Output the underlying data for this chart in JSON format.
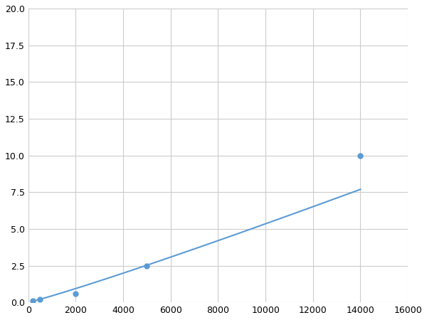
{
  "x": [
    200,
    500,
    2000,
    5000,
    14000
  ],
  "y": [
    0.1,
    0.2,
    0.6,
    2.5,
    10.0
  ],
  "line_color": "#5b9bd5",
  "marker_color": "#5b9bd5",
  "marker_size": 5,
  "line_width": 1.5,
  "xlim": [
    0,
    16000
  ],
  "ylim": [
    0,
    20.0
  ],
  "xticks": [
    0,
    2000,
    4000,
    6000,
    8000,
    10000,
    12000,
    14000,
    16000
  ],
  "yticks": [
    0.0,
    2.5,
    5.0,
    7.5,
    10.0,
    12.5,
    15.0,
    17.5,
    20.0
  ],
  "grid": true,
  "grid_color": "#cccccc",
  "background_color": "#ffffff",
  "figsize": [
    6.0,
    4.5
  ],
  "dpi": 100
}
